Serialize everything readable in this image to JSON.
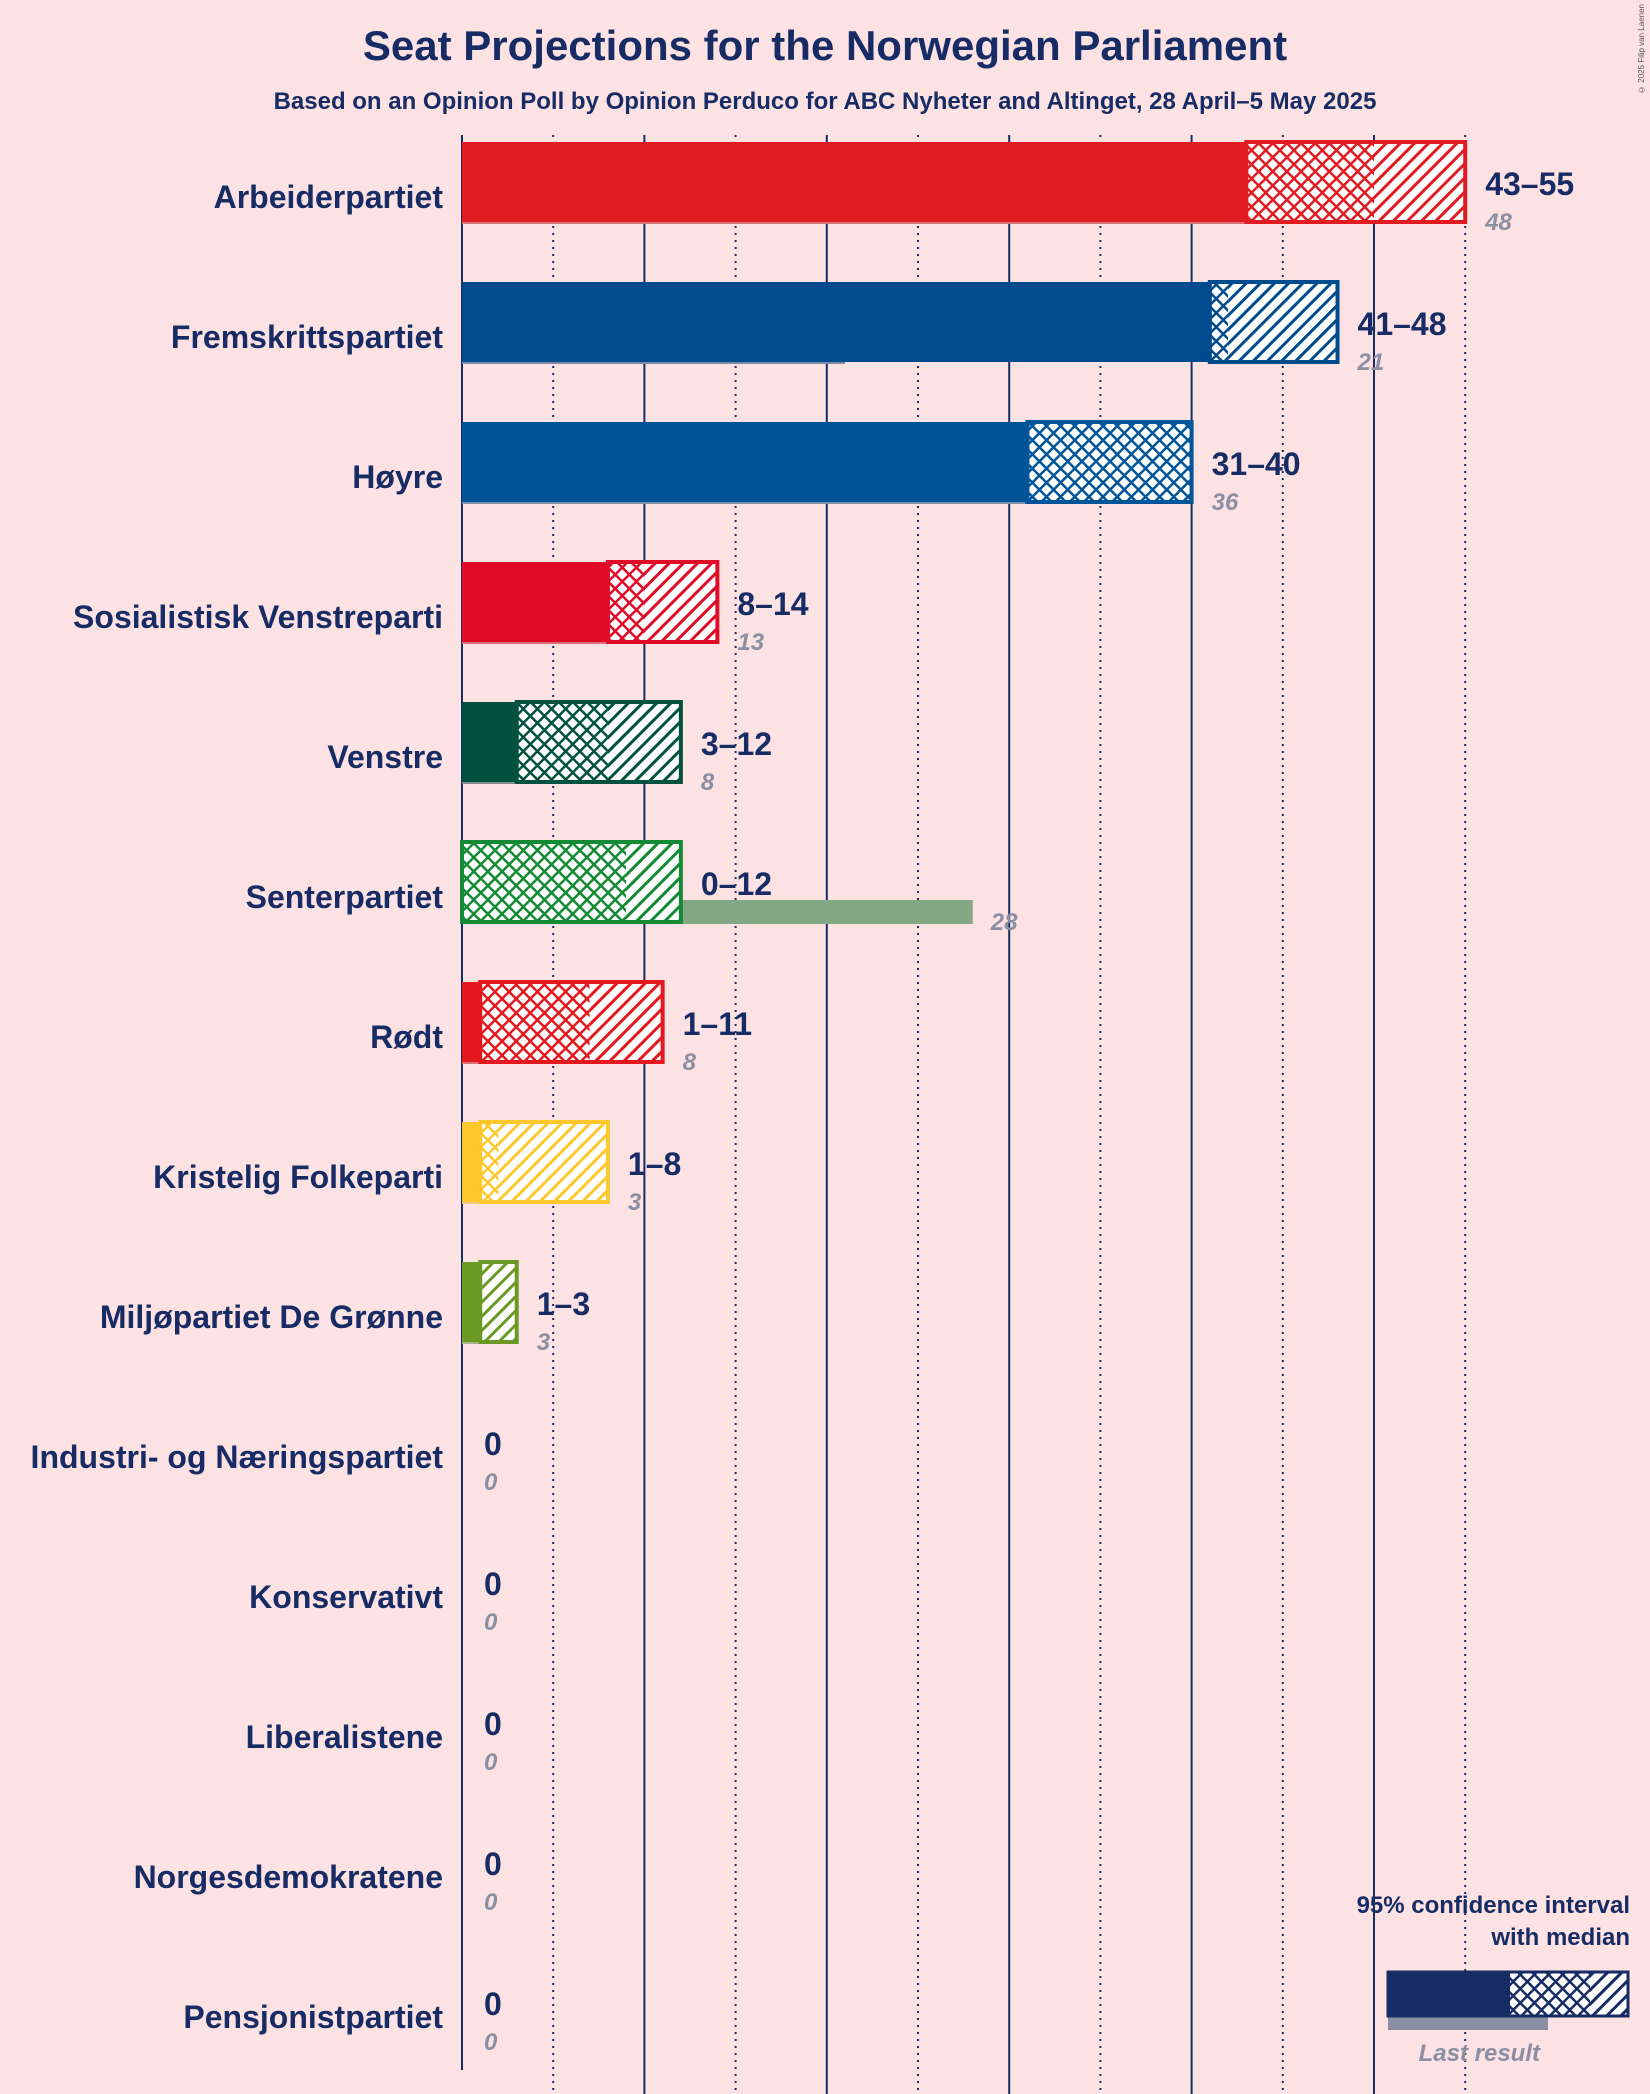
{
  "chart_data": {
    "type": "bar",
    "title": "Seat Projections for the Norwegian Parliament",
    "subtitle": "Based on an Opinion Poll by Opinion Perduco for ABC Nyheter and Altinget, 28 April–5 May 2025",
    "copyright": "© 2025 Filip van Laenen",
    "xlim": [
      0,
      55
    ],
    "gridlines_solid": [
      10,
      20,
      30,
      40,
      50
    ],
    "gridlines_dotted": [
      5,
      15,
      25,
      35,
      45,
      55
    ],
    "parties": [
      {
        "name": "Arbeiderpartiet",
        "low": 43,
        "median": 48,
        "high": 55,
        "ci_low_inner": 43,
        "ci_high_inner": 50,
        "last": 48,
        "range_label": "43–55",
        "color": "#e01b22",
        "last_color": "#d8707a"
      },
      {
        "name": "Fremskrittspartiet",
        "low": 41,
        "median": 42,
        "high": 48,
        "ci_low_inner": 41,
        "ci_high_inner": 42,
        "last": 21,
        "range_label": "41–48",
        "color": "#004b8e",
        "last_color": "#7f8aa8"
      },
      {
        "name": "Høyre",
        "low": 31,
        "median": 36,
        "high": 40,
        "ci_low_inner": 31,
        "ci_high_inner": 40,
        "last": 36,
        "range_label": "31–40",
        "color": "#005599",
        "last_color": "#7f8eae"
      },
      {
        "name": "Sosialistisk Venstreparti",
        "low": 8,
        "median": 10,
        "high": 14,
        "ci_low_inner": 8,
        "ci_high_inner": 10,
        "last": 13,
        "range_label": "8–14",
        "color": "#df0b27",
        "last_color": "#d8707a"
      },
      {
        "name": "Venstre",
        "low": 3,
        "median": 8,
        "high": 12,
        "ci_low_inner": 3,
        "ci_high_inner": 8,
        "last": 8,
        "range_label": "3–12",
        "color": "#00523f",
        "last_color": "#7f8a8a"
      },
      {
        "name": "Senterpartiet",
        "low": 0,
        "median": 9,
        "high": 12,
        "ci_low_inner": 0,
        "ci_high_inner": 9,
        "last": 28,
        "range_label": "0–12",
        "color": "#158a35",
        "last_color": "#83a883"
      },
      {
        "name": "Rødt",
        "low": 1,
        "median": 7,
        "high": 11,
        "ci_low_inner": 1,
        "ci_high_inner": 7,
        "last": 8,
        "range_label": "1–11",
        "color": "#e3191f",
        "last_color": "#d8707a"
      },
      {
        "name": "Kristelig Folkeparti",
        "low": 1,
        "median": 2,
        "high": 8,
        "ci_low_inner": 1,
        "ci_high_inner": 2,
        "last": 3,
        "range_label": "1–8",
        "color": "#fec82d",
        "last_color": "#f3c98a"
      },
      {
        "name": "Miljøpartiet De Grønne",
        "low": 1,
        "median": 1,
        "high": 3,
        "ci_low_inner": 1,
        "ci_high_inner": 1,
        "last": 3,
        "range_label": "1–3",
        "color": "#6a9a25",
        "last_color": "#a8b38a"
      },
      {
        "name": "Industri- og Næringspartiet",
        "low": 0,
        "median": 0,
        "high": 0,
        "ci_low_inner": 0,
        "ci_high_inner": 0,
        "last": 0,
        "range_label": "0",
        "color": "#172c64",
        "last_color": "#8a8fa3"
      },
      {
        "name": "Konservativt",
        "low": 0,
        "median": 0,
        "high": 0,
        "ci_low_inner": 0,
        "ci_high_inner": 0,
        "last": 0,
        "range_label": "0",
        "color": "#172c64",
        "last_color": "#8a8fa3"
      },
      {
        "name": "Liberalistene",
        "low": 0,
        "median": 0,
        "high": 0,
        "ci_low_inner": 0,
        "ci_high_inner": 0,
        "last": 0,
        "range_label": "0",
        "color": "#172c64",
        "last_color": "#8a8fa3"
      },
      {
        "name": "Norgesdemokratene",
        "low": 0,
        "median": 0,
        "high": 0,
        "ci_low_inner": 0,
        "ci_high_inner": 0,
        "last": 0,
        "range_label": "0",
        "color": "#172c64",
        "last_color": "#8a8fa3"
      },
      {
        "name": "Pensjonistpartiet",
        "low": 0,
        "median": 0,
        "high": 0,
        "ci_low_inner": 0,
        "ci_high_inner": 0,
        "last": 0,
        "range_label": "0",
        "color": "#172c64",
        "last_color": "#8a8fa3"
      }
    ],
    "legend": {
      "title_line1": "95% confidence interval",
      "title_line2": "with median",
      "last_result": "Last result",
      "placement": "bottom-right",
      "color": "#172c64"
    }
  }
}
